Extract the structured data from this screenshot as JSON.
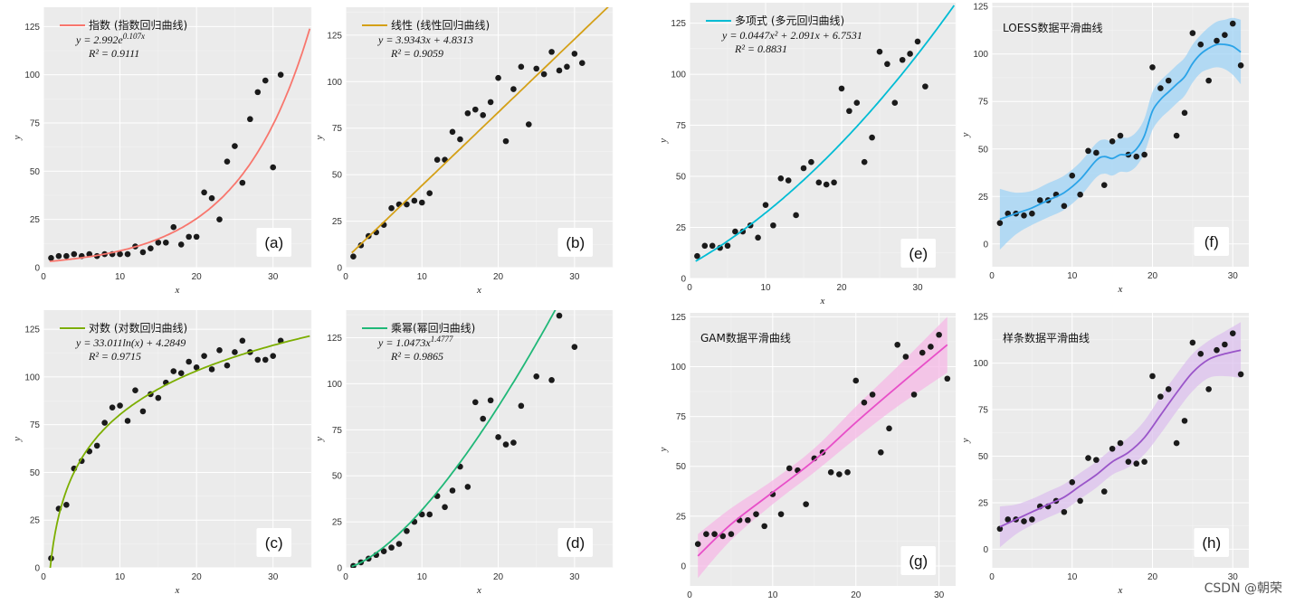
{
  "watermark": "CSDN @朝荣",
  "chart_data": [
    {
      "id": "a",
      "type": "scatter",
      "tag": "(a)",
      "legend": "指数 (指数回归曲线)",
      "equation": [
        "y = 2.992e^0.107x",
        "R² = 0.9111"
      ],
      "xlabel": "x",
      "ylabel": "y",
      "xlim": [
        0,
        35
      ],
      "ylim": [
        0,
        135
      ],
      "xticks": [
        0,
        10,
        20,
        30
      ],
      "yticks": [
        0,
        25,
        50,
        75,
        100,
        125
      ],
      "line_color": "#f8766d",
      "band": false,
      "curve": {
        "kind": "exp",
        "a": 2.992,
        "b": 0.107
      },
      "x": [
        1,
        2,
        3,
        4,
        5,
        6,
        7,
        8,
        9,
        10,
        11,
        12,
        13,
        14,
        15,
        16,
        17,
        18,
        19,
        20,
        21,
        22,
        23,
        24,
        25,
        26,
        27,
        28,
        29,
        30,
        31
      ],
      "y": [
        5,
        6,
        6,
        7,
        6,
        7,
        6,
        7,
        7,
        7,
        7,
        11,
        8,
        10,
        13,
        13,
        21,
        12,
        16,
        16,
        39,
        36,
        25,
        55,
        63,
        44,
        77,
        91,
        97,
        52,
        100
      ]
    },
    {
      "id": "b",
      "type": "scatter",
      "tag": "(b)",
      "legend": "线性 (线性回归曲线)",
      "equation": [
        "y = 3.9343x + 4.8313",
        "R² = 0.9059"
      ],
      "xlabel": "x",
      "ylabel": "y",
      "xlim": [
        0,
        35
      ],
      "ylim": [
        0,
        140
      ],
      "xticks": [
        0,
        10,
        20,
        30
      ],
      "yticks": [
        0,
        25,
        50,
        75,
        100,
        125
      ],
      "line_color": "#d4a017",
      "band": false,
      "curve": {
        "kind": "linear",
        "m": 3.9343,
        "c": 4.8313
      },
      "x": [
        1,
        2,
        3,
        4,
        5,
        6,
        7,
        8,
        9,
        10,
        11,
        12,
        13,
        14,
        15,
        16,
        17,
        18,
        19,
        20,
        21,
        22,
        23,
        24,
        25,
        26,
        27,
        28,
        29,
        30,
        31
      ],
      "y": [
        6,
        12,
        17,
        19,
        23,
        32,
        34,
        34,
        36,
        35,
        40,
        58,
        58,
        73,
        69,
        83,
        85,
        82,
        89,
        102,
        68,
        96,
        108,
        77,
        107,
        104,
        116,
        106,
        108,
        115,
        110
      ]
    },
    {
      "id": "c",
      "type": "scatter",
      "tag": "(c)",
      "legend": "对数 (对数回归曲线)",
      "equation": [
        "y = 33.011ln(x) + 4.2849",
        "R² = 0.9715"
      ],
      "xlabel": "x",
      "ylabel": "y",
      "xlim": [
        0,
        35
      ],
      "ylim": [
        0,
        135
      ],
      "xticks": [
        0,
        10,
        20,
        30
      ],
      "yticks": [
        0,
        25,
        50,
        75,
        100,
        125
      ],
      "line_color": "#7cae00",
      "band": false,
      "curve": {
        "kind": "log",
        "a": 33.011,
        "c": 4.2849
      },
      "x": [
        1,
        2,
        3,
        4,
        5,
        6,
        7,
        8,
        9,
        10,
        11,
        12,
        13,
        14,
        15,
        16,
        17,
        18,
        19,
        20,
        21,
        22,
        23,
        24,
        25,
        26,
        27,
        28,
        29,
        30,
        31
      ],
      "y": [
        5,
        31,
        33,
        52,
        56,
        61,
        64,
        76,
        84,
        85,
        77,
        93,
        82,
        91,
        89,
        97,
        103,
        102,
        108,
        105,
        111,
        104,
        114,
        106,
        113,
        119,
        113,
        109,
        109,
        111,
        119
      ]
    },
    {
      "id": "d",
      "type": "scatter",
      "tag": "(d)",
      "legend": "乘幂(幂回归曲线)",
      "equation": [
        "y = 1.0473x^1.4777",
        "R² = 0.9865"
      ],
      "xlabel": "x",
      "ylabel": "y",
      "xlim": [
        0,
        35
      ],
      "ylim": [
        0,
        140
      ],
      "xticks": [
        0,
        10,
        20,
        30
      ],
      "yticks": [
        0,
        25,
        50,
        75,
        100,
        125
      ],
      "line_color": "#20b878",
      "band": false,
      "curve": {
        "kind": "power",
        "a": 1.0473,
        "b": 1.4777
      },
      "x": [
        1,
        2,
        3,
        4,
        5,
        6,
        7,
        8,
        9,
        10,
        11,
        12,
        13,
        14,
        15,
        16,
        17,
        18,
        19,
        20,
        21,
        22,
        23,
        25,
        27,
        28,
        30
      ],
      "y": [
        1,
        3,
        5,
        7,
        9,
        11,
        13,
        20,
        25,
        29,
        29,
        39,
        33,
        42,
        55,
        44,
        90,
        81,
        91,
        71,
        67,
        68,
        88,
        104,
        102,
        137,
        120
      ]
    },
    {
      "id": "e",
      "type": "scatter",
      "tag": "(e)",
      "legend": "多项式 (多元回归曲线)",
      "equation": [
        "y = 0.0447x² + 2.091x + 6.7531",
        "R² = 0.8831"
      ],
      "xlabel": "x",
      "ylabel": "y",
      "xlim": [
        0,
        35
      ],
      "ylim": [
        0,
        135
      ],
      "xticks": [
        0,
        10,
        20,
        30
      ],
      "yticks": [
        0,
        25,
        50,
        75,
        100,
        125
      ],
      "line_color": "#00bcd4",
      "band": false,
      "curve": {
        "kind": "poly2",
        "a": 0.0447,
        "b": 2.091,
        "c": 6.7531
      },
      "x": [
        1,
        2,
        3,
        4,
        5,
        6,
        7,
        8,
        9,
        10,
        11,
        12,
        13,
        14,
        15,
        16,
        17,
        18,
        19,
        20,
        21,
        22,
        23,
        24,
        25,
        26,
        27,
        28,
        29,
        30,
        31
      ],
      "y": [
        11,
        16,
        16,
        15,
        16,
        23,
        23,
        26,
        20,
        36,
        26,
        49,
        48,
        31,
        54,
        57,
        47,
        46,
        47,
        93,
        82,
        86,
        57,
        69,
        111,
        105,
        86,
        107,
        110,
        116,
        94
      ]
    },
    {
      "id": "f",
      "type": "scatter",
      "tag": "(f)",
      "legend": "LOESS数据平滑曲线",
      "equation": [],
      "xlabel": "x",
      "ylabel": "y",
      "xlim": [
        0,
        32
      ],
      "ylim": [
        -12,
        127
      ],
      "xticks": [
        0,
        10,
        20,
        30
      ],
      "yticks": [
        0,
        25,
        50,
        75,
        100,
        125
      ],
      "line_color": "#2aa3e8",
      "band": true,
      "band_color": "#9fd3f5",
      "curve": {
        "kind": "points",
        "x": [
          1,
          3,
          5,
          7,
          9,
          11,
          13,
          14,
          15,
          16,
          17,
          18,
          19,
          20,
          21,
          22,
          23,
          24,
          25,
          26,
          27,
          28,
          29,
          30,
          31
        ],
        "y": [
          13,
          16,
          19,
          23,
          27,
          34,
          44,
          46,
          45,
          47,
          47,
          50,
          57,
          70,
          76,
          80,
          84,
          88,
          95,
          100,
          103,
          105,
          105,
          104,
          101
        ],
        "lo": [
          -3,
          5,
          10,
          14,
          18,
          25,
          35,
          37,
          36,
          38,
          38,
          41,
          48,
          60,
          66,
          70,
          74,
          78,
          85,
          90,
          92,
          93,
          92,
          89,
          84
        ],
        "hi": [
          29,
          27,
          28,
          32,
          36,
          43,
          53,
          55,
          54,
          56,
          56,
          59,
          66,
          80,
          86,
          90,
          94,
          98,
          105,
          110,
          114,
          117,
          118,
          119,
          118
        ]
      },
      "x": [
        1,
        2,
        3,
        4,
        5,
        6,
        7,
        8,
        9,
        10,
        11,
        12,
        13,
        14,
        15,
        16,
        17,
        18,
        19,
        20,
        21,
        22,
        23,
        24,
        25,
        26,
        27,
        28,
        29,
        30,
        31
      ],
      "y": [
        11,
        16,
        16,
        15,
        16,
        23,
        23,
        26,
        20,
        36,
        26,
        49,
        48,
        31,
        54,
        57,
        47,
        46,
        47,
        93,
        82,
        86,
        57,
        69,
        111,
        105,
        86,
        107,
        110,
        116,
        94
      ]
    },
    {
      "id": "g",
      "type": "scatter",
      "tag": "(g)",
      "legend": "GAM数据平滑曲线",
      "equation": [],
      "xlabel": "x",
      "ylabel": "y",
      "xlim": [
        0,
        32
      ],
      "ylim": [
        -10,
        127
      ],
      "xticks": [
        0,
        10,
        20,
        30
      ],
      "yticks": [
        0,
        25,
        50,
        75,
        100,
        125
      ],
      "line_color": "#e84fc8",
      "band": true,
      "band_color": "#f5b8e6",
      "curve": {
        "kind": "points",
        "x": [
          1,
          5,
          10,
          15,
          20,
          25,
          31
        ],
        "y": [
          5,
          21,
          37,
          53,
          72,
          90,
          111
        ],
        "lo": [
          -6,
          13,
          31,
          47,
          64,
          80,
          97
        ],
        "hi": [
          16,
          29,
          43,
          59,
          80,
          100,
          125
        ]
      },
      "x": [
        1,
        2,
        3,
        4,
        5,
        6,
        7,
        8,
        9,
        10,
        11,
        12,
        13,
        14,
        15,
        16,
        17,
        18,
        19,
        20,
        21,
        22,
        23,
        24,
        25,
        26,
        27,
        28,
        29,
        30,
        31
      ],
      "y": [
        11,
        16,
        16,
        15,
        16,
        23,
        23,
        26,
        20,
        36,
        26,
        49,
        48,
        31,
        54,
        57,
        47,
        46,
        47,
        93,
        82,
        86,
        57,
        69,
        111,
        105,
        86,
        107,
        110,
        116,
        94
      ]
    },
    {
      "id": "h",
      "type": "scatter",
      "tag": "(h)",
      "legend": "样条数据平滑曲线",
      "equation": [],
      "xlabel": "x",
      "ylabel": "y",
      "xlim": [
        0,
        32
      ],
      "ylim": [
        -10,
        127
      ],
      "xticks": [
        0,
        10,
        20,
        30
      ],
      "yticks": [
        0,
        25,
        50,
        75,
        100,
        125
      ],
      "line_color": "#9a55c9",
      "band": true,
      "band_color": "#dcc0ee",
      "curve": {
        "kind": "points",
        "x": [
          1,
          3,
          5,
          7,
          9,
          11,
          13,
          15,
          17,
          19,
          21,
          23,
          25,
          27,
          29,
          31
        ],
        "y": [
          12,
          16,
          20,
          24,
          28,
          34,
          40,
          47,
          52,
          60,
          72,
          84,
          95,
          102,
          105,
          107
        ],
        "lo": [
          1,
          8,
          13,
          17,
          21,
          27,
          33,
          40,
          44,
          51,
          62,
          74,
          85,
          92,
          93,
          92
        ],
        "hi": [
          23,
          24,
          27,
          31,
          35,
          41,
          47,
          54,
          60,
          69,
          82,
          94,
          105,
          112,
          117,
          122
        ]
      },
      "x": [
        1,
        2,
        3,
        4,
        5,
        6,
        7,
        8,
        9,
        10,
        11,
        12,
        13,
        14,
        15,
        16,
        17,
        18,
        19,
        20,
        21,
        22,
        23,
        24,
        25,
        26,
        27,
        28,
        29,
        30,
        31
      ],
      "y": [
        11,
        16,
        16,
        15,
        16,
        23,
        23,
        26,
        20,
        36,
        26,
        49,
        48,
        31,
        54,
        57,
        47,
        46,
        47,
        93,
        82,
        86,
        57,
        69,
        111,
        105,
        86,
        107,
        110,
        116,
        94
      ]
    }
  ]
}
